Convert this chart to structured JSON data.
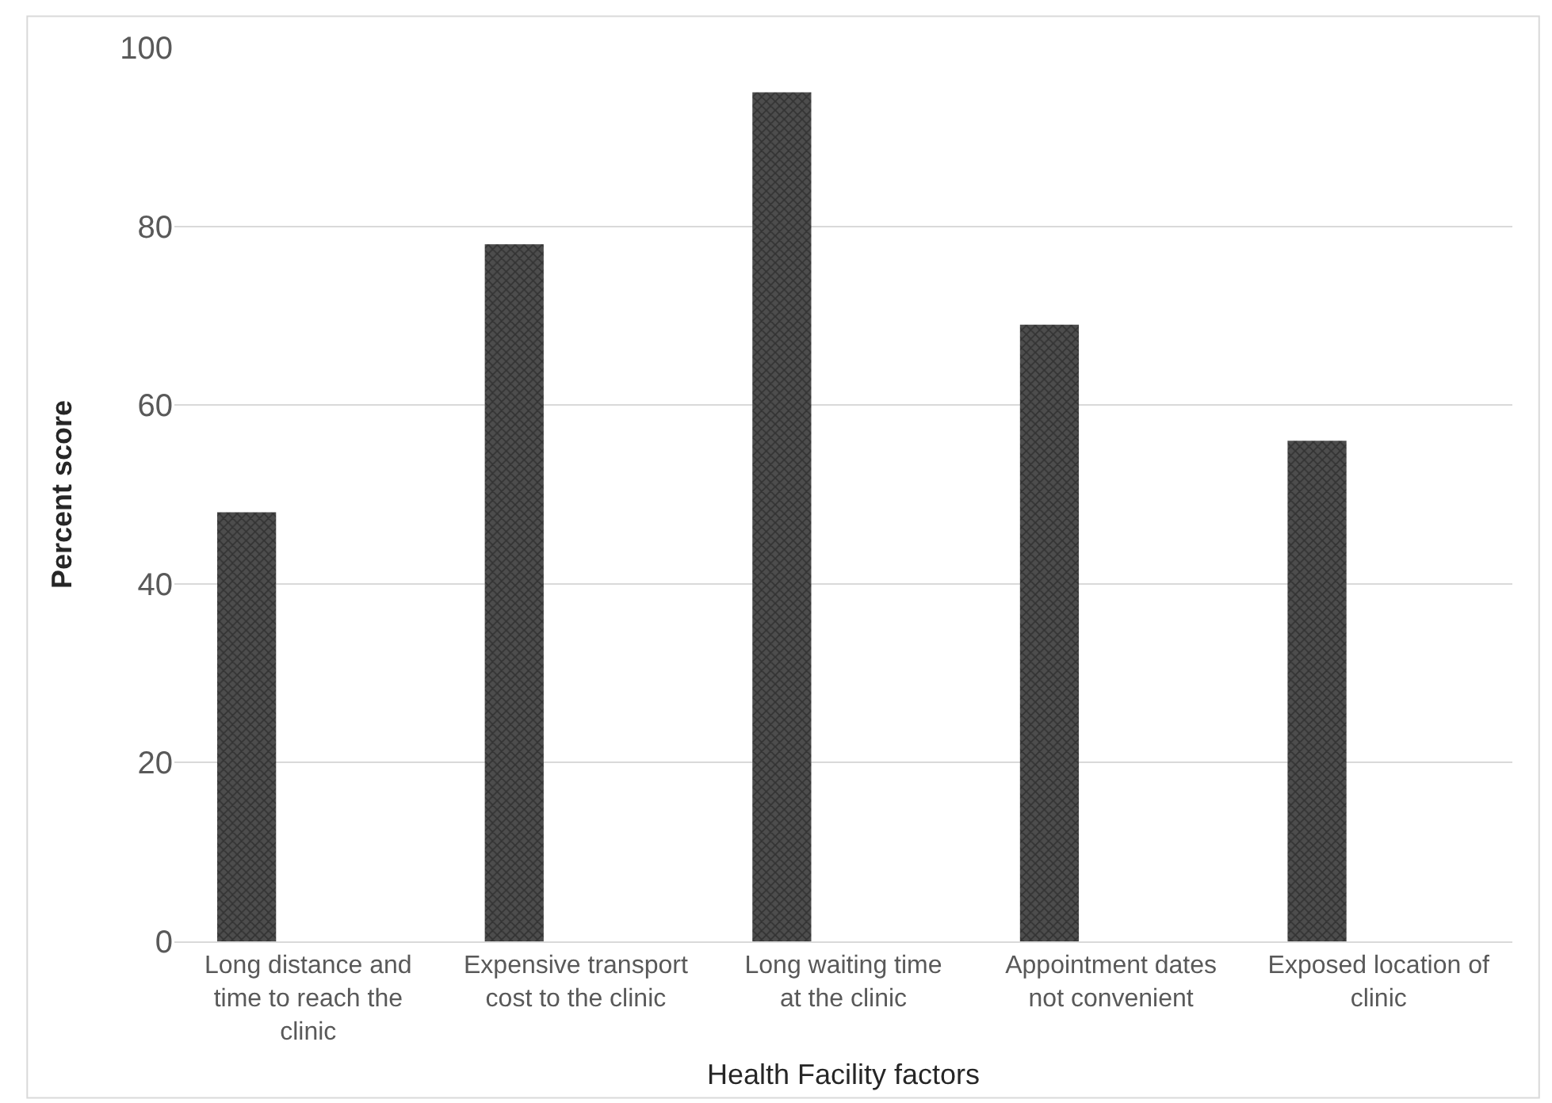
{
  "chart_data": {
    "type": "bar",
    "xlabel": "Health Facility factors",
    "ylabel": "Percent score",
    "categories": [
      "Long distance and time to reach the clinic",
      "Expensive transport cost to the clinic",
      "Long waiting time at the clinic",
      "Appointment dates not convenient",
      "Exposed location of clinic"
    ],
    "values": [
      48,
      78,
      95,
      69,
      56
    ],
    "color": "#4d4d4d",
    "ylim": [
      0,
      100
    ],
    "yticks": [
      0,
      20,
      40,
      60,
      80,
      100
    ],
    "grid": "y"
  }
}
